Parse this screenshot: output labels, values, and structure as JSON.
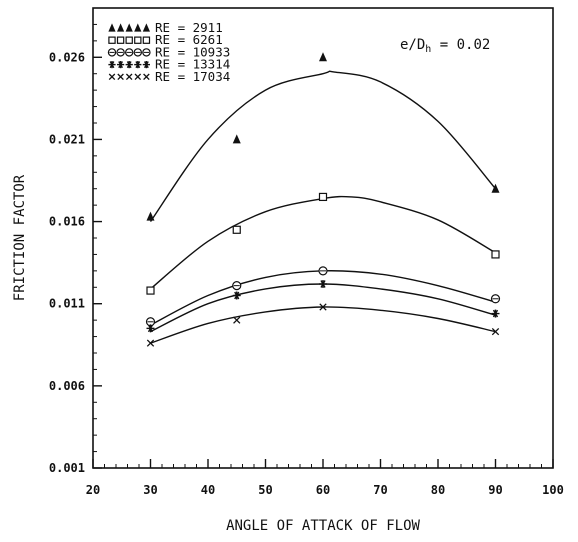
{
  "chart_data": {
    "type": "scatter",
    "xlabel": "ANGLE OF ATTACK OF FLOW",
    "ylabel": "FRICTION FACTOR",
    "annotation": "e/Dh = 0.02",
    "annotation_parts": {
      "symbol": "e/D",
      "subscript": "h",
      "rest": " = 0.02"
    },
    "xlim": [
      20,
      100
    ],
    "ylim": [
      0.001,
      0.029
    ],
    "x_ticks": [
      20,
      30,
      40,
      50,
      60,
      70,
      80,
      90,
      100
    ],
    "y_ticks": [
      0.001,
      0.006,
      0.011,
      0.016,
      0.021,
      0.026
    ],
    "x_tick_labels": [
      "20",
      "30",
      "40",
      "50",
      "60",
      "70",
      "80",
      "90",
      "100"
    ],
    "y_tick_labels": [
      "0.001",
      "0.006",
      "0.011",
      "0.016",
      "0.021",
      "0.026"
    ],
    "legend_position": "top-left",
    "grid": false,
    "series": [
      {
        "name": "RE = 2911",
        "marker": "filled-triangle",
        "x": [
          30,
          45,
          60,
          90
        ],
        "y": [
          0.0163,
          0.021,
          0.026,
          0.018
        ],
        "fit": {
          "x": [
            30,
            40,
            50,
            60,
            62,
            70,
            80,
            90
          ],
          "y": [
            0.016,
            0.021,
            0.024,
            0.025,
            0.0251,
            0.0245,
            0.0221,
            0.018
          ]
        }
      },
      {
        "name": "RE = 6261",
        "marker": "square",
        "x": [
          30,
          45,
          60,
          90
        ],
        "y": [
          0.0118,
          0.0155,
          0.0175,
          0.014
        ],
        "fit": {
          "x": [
            30,
            40,
            50,
            60,
            65,
            70,
            80,
            90
          ],
          "y": [
            0.0119,
            0.0148,
            0.0166,
            0.0174,
            0.0175,
            0.0172,
            0.0161,
            0.0141
          ]
        }
      },
      {
        "name": "RE = 10933",
        "marker": "circle",
        "x": [
          30,
          45,
          60,
          90
        ],
        "y": [
          0.0099,
          0.0121,
          0.013,
          0.0113
        ],
        "fit": {
          "x": [
            30,
            40,
            50,
            60,
            70,
            80,
            90
          ],
          "y": [
            0.0097,
            0.0115,
            0.0126,
            0.013,
            0.0128,
            0.0121,
            0.0111
          ]
        }
      },
      {
        "name": "RE = 13314",
        "marker": "asterisk",
        "x": [
          30,
          45,
          60,
          90
        ],
        "y": [
          0.0095,
          0.0115,
          0.0122,
          0.0104
        ],
        "fit": {
          "x": [
            30,
            40,
            50,
            60,
            70,
            80,
            90
          ],
          "y": [
            0.0093,
            0.011,
            0.0119,
            0.0122,
            0.0119,
            0.0113,
            0.0103
          ]
        }
      },
      {
        "name": "RE = 17034",
        "marker": "cross",
        "x": [
          30,
          45,
          60,
          90
        ],
        "y": [
          0.0086,
          0.01,
          0.0108,
          0.0093
        ],
        "fit": {
          "x": [
            30,
            40,
            50,
            60,
            70,
            80,
            90
          ],
          "y": [
            0.0086,
            0.0098,
            0.0105,
            0.0108,
            0.0106,
            0.0101,
            0.0093
          ]
        }
      }
    ]
  }
}
